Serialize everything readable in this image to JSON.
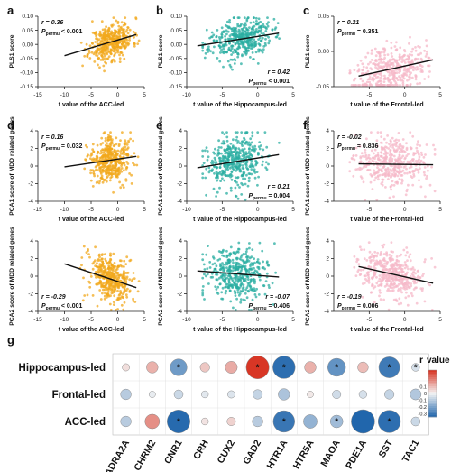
{
  "panels": [
    {
      "letter": "a",
      "ylabel": "PLS1 score",
      "xlabel": "t value of the ACC-led",
      "xlim": [
        -15,
        5
      ],
      "xticks": [
        "-15",
        "-10",
        "-5",
        "0",
        "5"
      ],
      "ylim": [
        -0.15,
        0.1
      ],
      "yticks": [
        "-0.15",
        "-0.10",
        "-0.05",
        "0.00",
        "0.05",
        "0.10"
      ],
      "r_text": "r = 0.36",
      "p_text": "P",
      "p_sub": "permu",
      "p_val": "< 0.001",
      "stat_pos": "top-left",
      "color": "#f2a81c",
      "cx": -1.2,
      "sx": 2.0,
      "cy": -0.005,
      "sy": 0.032,
      "line_x": [
        -10,
        3.5
      ],
      "line_y": [
        -0.04,
        0.035
      ],
      "seed": 11
    },
    {
      "letter": "b",
      "ylabel": "PLS1 score",
      "xlabel": "t value of the Hippocampus-led",
      "xlim": [
        -10,
        5
      ],
      "xticks": [
        "-10",
        "-5",
        "0",
        "5"
      ],
      "ylim": [
        -0.15,
        0.1
      ],
      "yticks": [
        "-0.15",
        "-0.10",
        "-0.05",
        "0.00",
        "0.05",
        "0.10"
      ],
      "r_text": "r = 0.42",
      "p_text": "P",
      "p_sub": "permu",
      "p_val": "< 0.001",
      "stat_pos": "bottom-right",
      "color": "#2aaea2",
      "cx": -2.5,
      "sx": 2.2,
      "cy": 0.005,
      "sy": 0.035,
      "line_x": [
        -8.5,
        3
      ],
      "line_y": [
        -0.005,
        0.04
      ],
      "seed": 23
    },
    {
      "letter": "c",
      "ylabel": "PLS1 score",
      "xlabel": "t value of the Frontal-led",
      "xlim": [
        -10,
        5
      ],
      "xticks": [
        "-5",
        "0",
        "5"
      ],
      "ylim": [
        -0.05,
        0.05
      ],
      "yticks": [
        "-0.05",
        "0.00",
        "0.05"
      ],
      "r_text": "r = 0.21",
      "p_text": "P",
      "p_sub": "permu",
      "p_val": "= 0.351",
      "stat_pos": "top-left",
      "color": "#f6b8c8",
      "cx": -2.0,
      "sx": 2.4,
      "cy": -0.003,
      "sy": 0.017,
      "line_x": [
        -6.5,
        4
      ],
      "line_y": [
        -0.035,
        -0.012
      ],
      "seed": 37
    },
    {
      "letter": "d",
      "ylabel": "PCA1 score of MDD related genes",
      "xlabel": "t value of the ACC-led",
      "xlim": [
        -15,
        5
      ],
      "xticks": [
        "-15",
        "-10",
        "-5",
        "0",
        "5"
      ],
      "ylim": [
        -4,
        4
      ],
      "yticks": [
        "-4",
        "-2",
        "0",
        "2",
        "4"
      ],
      "r_text": "r = 0.16",
      "p_text": "P",
      "p_sub": "permu",
      "p_val": "= 0.032",
      "stat_pos": "top-left",
      "color": "#f2a81c",
      "cx": -1.4,
      "sx": 2.0,
      "cy": 0.6,
      "sy": 1.3,
      "line_x": [
        -10,
        3.5
      ],
      "line_y": [
        -0.1,
        1.1
      ],
      "seed": 41
    },
    {
      "letter": "e",
      "ylabel": "PCA1 score of MDD related genes",
      "xlabel": "t value of the Hippocampus-led",
      "xlim": [
        -10,
        5
      ],
      "xticks": [
        "-10",
        "-5",
        "0",
        "5"
      ],
      "ylim": [
        -4,
        4
      ],
      "yticks": [
        "-4",
        "-2",
        "0",
        "2",
        "4"
      ],
      "r_text": "r = 0.21",
      "p_text": "P",
      "p_sub": "permu",
      "p_val": "= 0.004",
      "stat_pos": "bottom-right",
      "color": "#2aaea2",
      "cx": -3.0,
      "sx": 2.2,
      "cy": 0.3,
      "sy": 1.5,
      "line_x": [
        -8.5,
        3
      ],
      "line_y": [
        -0.2,
        1.3
      ],
      "seed": 53
    },
    {
      "letter": "f",
      "ylabel": "PCA1 score of MDD related genes",
      "xlabel": "t value of the Frontal-led",
      "xlim": [
        -10,
        5
      ],
      "xticks": [
        "-5",
        "0",
        "5"
      ],
      "ylim": [
        -4,
        4
      ],
      "yticks": [
        "-4",
        "-2",
        "0",
        "2",
        "4"
      ],
      "r_text": "r = -0.02",
      "p_text": "P",
      "p_sub": "permu",
      "p_val": "= 0.836",
      "stat_pos": "top-left",
      "color": "#f6b8c8",
      "cx": -2.0,
      "sx": 2.4,
      "cy": 0.2,
      "sy": 1.4,
      "line_x": [
        -6.5,
        4
      ],
      "line_y": [
        0.25,
        0.15
      ],
      "seed": 67
    },
    {
      "letter": "",
      "ylabel": "PCA2 score of MDD related genes",
      "xlabel": "t value of the ACC-led",
      "xlim": [
        -15,
        5
      ],
      "xticks": [
        "-15",
        "-10",
        "-5",
        "0",
        "5"
      ],
      "ylim": [
        -4,
        4
      ],
      "yticks": [
        "-4",
        "-2",
        "0",
        "2",
        "4"
      ],
      "r_text": "r = -0.29",
      "p_text": "P",
      "p_sub": "permu",
      "p_val": "< 0.001",
      "stat_pos": "bottom-left",
      "color": "#f2a81c",
      "cx": -1.4,
      "sx": 2.0,
      "cy": -0.2,
      "sy": 1.3,
      "line_x": [
        -10,
        3.5
      ],
      "line_y": [
        1.4,
        -1.3
      ],
      "seed": 71
    },
    {
      "letter": "",
      "ylabel": "PCA2 score of MDD related genes",
      "xlabel": "t value of the Hippocampus-led",
      "xlim": [
        -10,
        5
      ],
      "xticks": [
        "-10",
        "-5",
        "0",
        "5"
      ],
      "ylim": [
        -4,
        4
      ],
      "yticks": [
        "-4",
        "-2",
        "0",
        "2",
        "4"
      ],
      "r_text": "r = -0.07",
      "p_text": "P",
      "p_sub": "permu",
      "p_val": "= 0.406",
      "stat_pos": "bottom-right",
      "color": "#2aaea2",
      "cx": -3.0,
      "sx": 2.2,
      "cy": 0.0,
      "sy": 1.5,
      "line_x": [
        -8.5,
        3
      ],
      "line_y": [
        0.6,
        -0.1
      ],
      "seed": 83
    },
    {
      "letter": "",
      "ylabel": "PCA2 score of MDD related genes",
      "xlabel": "t value of the Frontal-led",
      "xlim": [
        -10,
        5
      ],
      "xticks": [
        "-5",
        "0",
        "5"
      ],
      "ylim": [
        -4,
        4
      ],
      "yticks": [
        "-4",
        "-2",
        "0",
        "2",
        "4"
      ],
      "r_text": "r = -0.19",
      "p_text": "P",
      "p_sub": "permu",
      "p_val": "= 0.006",
      "stat_pos": "bottom-left",
      "color": "#f6b8c8",
      "cx": -2.0,
      "sx": 2.4,
      "cy": 0.0,
      "sy": 1.4,
      "line_x": [
        -6.5,
        4
      ],
      "line_y": [
        1.1,
        -0.8
      ],
      "seed": 97
    }
  ],
  "chart_data": {
    "type": "heatmap",
    "panel_letter": "g",
    "rows": [
      "Hippocampus-led",
      "Frontal-led",
      "ACC-led"
    ],
    "columns": [
      "ADRA2A",
      "CHRM2",
      "CNR1",
      "CRH",
      "CUX2",
      "GAD2",
      "HTR1A",
      "HTR5A",
      "MAOA",
      "PDE1A",
      "SST",
      "TAC1"
    ],
    "values": [
      [
        0.04,
        0.12,
        -0.22,
        0.08,
        0.13,
        0.34,
        -0.33,
        0.12,
        -0.24,
        0.1,
        -0.3,
        -0.05
      ],
      [
        -0.1,
        -0.02,
        -0.07,
        -0.03,
        -0.04,
        -0.08,
        -0.12,
        0.02,
        -0.06,
        -0.05,
        -0.08,
        -0.11
      ],
      [
        -0.1,
        0.18,
        -0.34,
        0.03,
        0.06,
        -0.1,
        -0.31,
        -0.16,
        -0.14,
        -0.35,
        -0.33,
        -0.07
      ]
    ],
    "significant": [
      [
        false,
        false,
        true,
        false,
        false,
        true,
        true,
        false,
        true,
        false,
        true,
        true
      ],
      [
        false,
        false,
        false,
        false,
        false,
        false,
        false,
        false,
        false,
        false,
        false,
        false
      ],
      [
        false,
        false,
        true,
        false,
        false,
        false,
        true,
        false,
        true,
        false,
        true,
        false
      ]
    ],
    "legend_title": "r value",
    "legend_ticks": [
      "0.1",
      "0",
      "-0.1",
      "-0.2",
      "-0.3"
    ],
    "legend_values": [
      0.1,
      0.0,
      -0.1,
      -0.2,
      -0.3
    ],
    "color_range": [
      -0.35,
      0.35
    ],
    "colors": {
      "positive": "#d7301f",
      "neutral": "#f4f4f4",
      "negative": "#2166ac"
    }
  }
}
